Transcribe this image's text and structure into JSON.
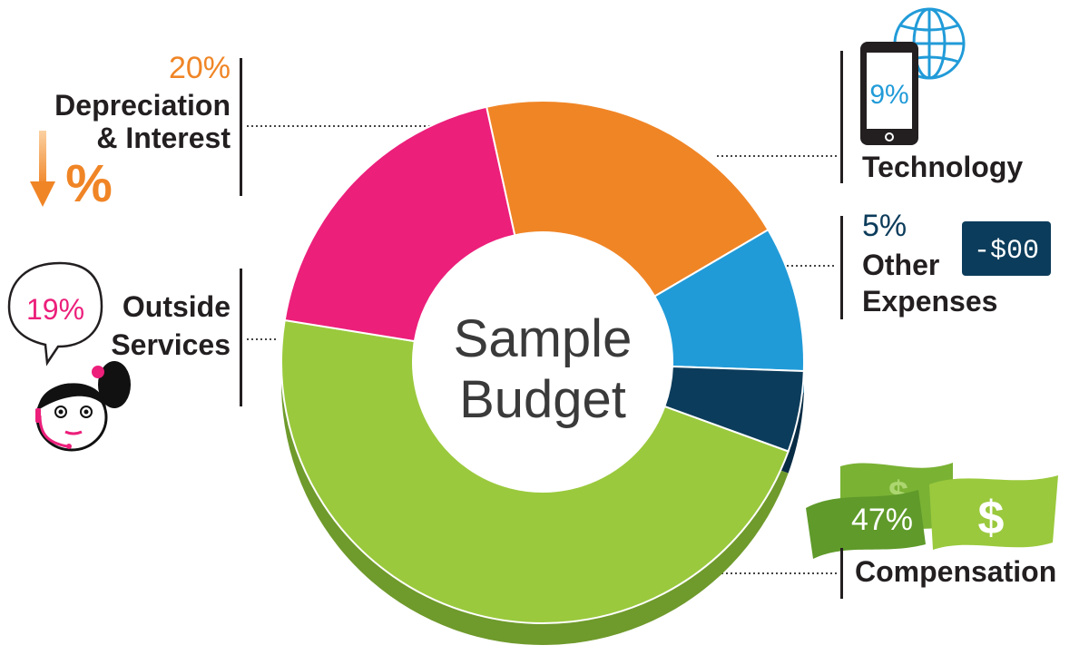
{
  "chart_data": {
    "type": "pie",
    "style": "3d-donut",
    "center_title": [
      "Sample",
      "Budget"
    ],
    "slices": [
      {
        "category": "Compensation",
        "value": 47,
        "pct_label": "47%",
        "color": "#9ac93d",
        "side": "#6f9a2c"
      },
      {
        "category": "Outside Services",
        "value": 19,
        "pct_label": "19%",
        "color": "#ec1f7b",
        "side": "#b0185f"
      },
      {
        "category": "Depreciation & Interest",
        "value": 20,
        "pct_label": "20%",
        "color": "#f08526",
        "side": "#c0661b"
      },
      {
        "category": "Technology",
        "value": 9,
        "pct_label": "9%",
        "color": "#219bd8",
        "side": "#1978aa"
      },
      {
        "category": "Other Expenses",
        "value": 5,
        "pct_label": "5%",
        "color": "#0c3c5b",
        "side": "#082c44"
      }
    ]
  },
  "labels": {
    "depreciation": {
      "pct": "20%",
      "line1": "Depreciation",
      "line2": "& Interest",
      "icon_text": "%"
    },
    "outside": {
      "pct": "19%",
      "line1": "Outside",
      "line2": "Services"
    },
    "technology": {
      "pct": "9%",
      "line1": "Technology"
    },
    "other": {
      "pct": "5%",
      "line1": "Other",
      "line2": "Expenses",
      "display_text": "-$00"
    },
    "compensation": {
      "pct": "47%",
      "line1": "Compensation"
    }
  },
  "icons": {
    "depreciation": "down-arrow-percent-icon",
    "outside": "support-agent-speech-bubble-icon",
    "technology": "smartphone-globe-icon",
    "other": "digital-display-icon",
    "compensation": "dollar-bills-icon"
  }
}
